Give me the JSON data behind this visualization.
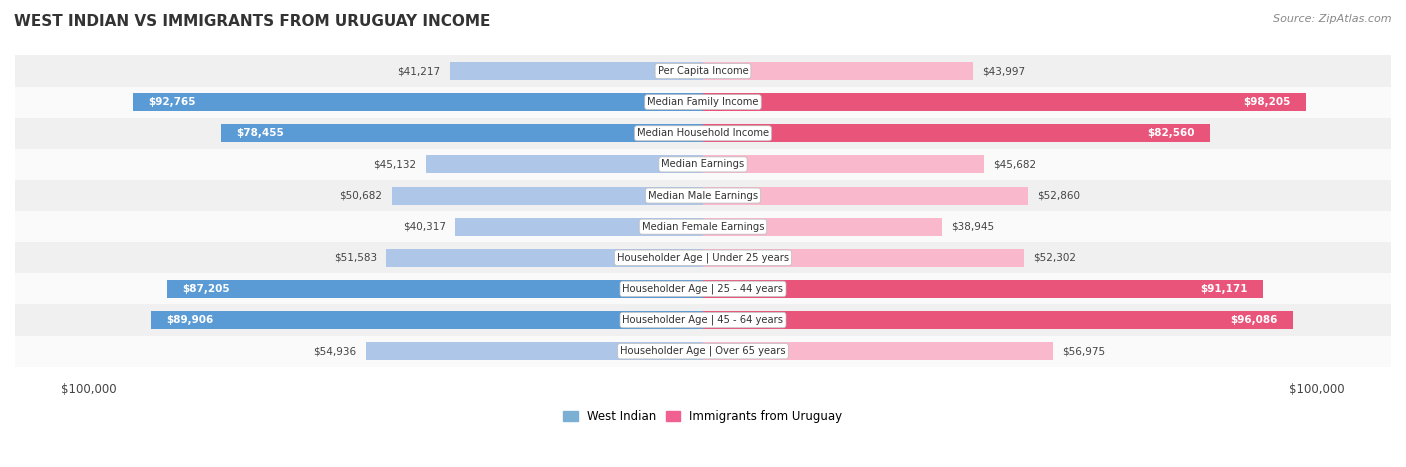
{
  "title": "WEST INDIAN VS IMMIGRANTS FROM URUGUAY INCOME",
  "source": "Source: ZipAtlas.com",
  "categories": [
    "Per Capita Income",
    "Median Family Income",
    "Median Household Income",
    "Median Earnings",
    "Median Male Earnings",
    "Median Female Earnings",
    "Householder Age | Under 25 years",
    "Householder Age | 25 - 44 years",
    "Householder Age | 45 - 64 years",
    "Householder Age | Over 65 years"
  ],
  "west_indian": [
    41217,
    92765,
    78455,
    45132,
    50682,
    40317,
    51583,
    87205,
    89906,
    54936
  ],
  "uruguay": [
    43997,
    98205,
    82560,
    45682,
    52860,
    38945,
    52302,
    91171,
    96086,
    56975
  ],
  "max_value": 100000,
  "blue_light": "#aec6e8",
  "blue_dark": "#5b9bd5",
  "pink_light": "#f9b8cc",
  "pink_dark": "#e8547a",
  "row_bg_even": "#f0f0f0",
  "row_bg_odd": "#fafafa",
  "label_outside_color": "#444444",
  "label_inside_color": "#ffffff",
  "inside_threshold": 65000,
  "legend_blue": "#7bafd4",
  "legend_pink": "#f06090"
}
